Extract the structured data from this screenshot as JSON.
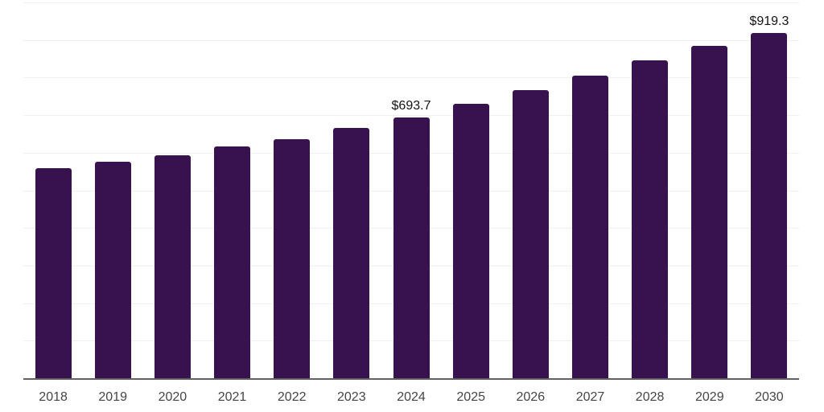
{
  "chart_data": {
    "type": "bar",
    "title": "",
    "xlabel": "",
    "ylabel": "",
    "categories": [
      "2018",
      "2019",
      "2020",
      "2021",
      "2022",
      "2023",
      "2024",
      "2025",
      "2026",
      "2027",
      "2028",
      "2029",
      "2030"
    ],
    "values": [
      558,
      577,
      594,
      616,
      637,
      665,
      693.7,
      731,
      767,
      806,
      846,
      885,
      919.3
    ],
    "data_labels": [
      null,
      null,
      null,
      null,
      null,
      null,
      "$693.7",
      null,
      null,
      null,
      null,
      null,
      "$919.3"
    ],
    "ylim": [
      0,
      1000
    ],
    "grid_step": 100,
    "grid": "horizontal gridlines only, no y-axis tick labels",
    "legend": "none",
    "bar_color": "#38124e",
    "gridline_color": "#f0f0f0",
    "axis_line_color": "#616161",
    "x_tick_label_color": "#454545",
    "data_label_color": "#141414"
  }
}
